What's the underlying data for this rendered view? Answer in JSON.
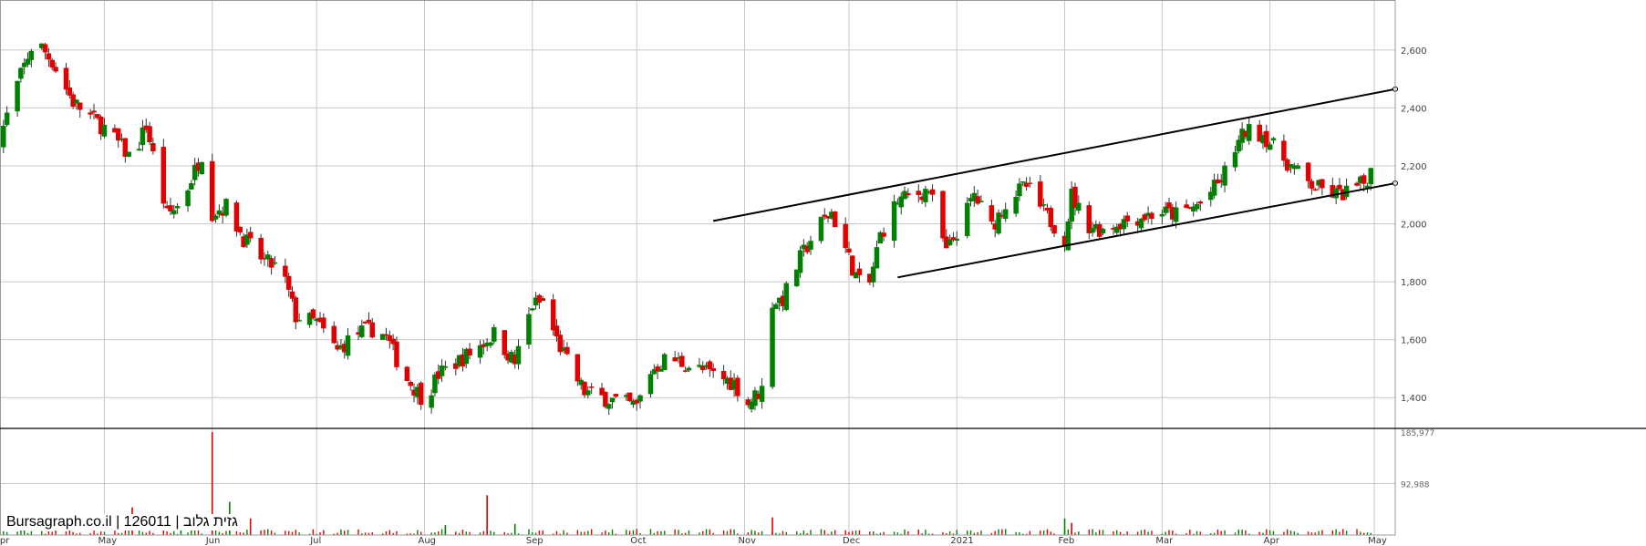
{
  "watermark": "Bursagraph.co.il | 126011 | גזית גלוב",
  "chart_data": {
    "type": "candlestick",
    "x_tick_labels": [
      "Apr",
      "May",
      "Jun",
      "Jul",
      "Aug",
      "Sep",
      "Oct",
      "Nov",
      "Dec",
      "2021",
      "Feb",
      "Mar",
      "Apr",
      "May"
    ],
    "x_tick_dates": [
      "2020-04-01",
      "2020-05-01",
      "2020-06-01",
      "2020-07-01",
      "2020-08-01",
      "2020-09-01",
      "2020-10-01",
      "2020-11-01",
      "2020-12-01",
      "2021-01-01",
      "2021-02-01",
      "2021-03-01",
      "2021-04-01",
      "2021-05-01"
    ],
    "x_range": [
      "2020-04-01",
      "2021-05-07"
    ],
    "price_axis": {
      "ticks": [
        1400,
        1600,
        1800,
        2000,
        2200,
        2400,
        2600
      ],
      "tick_labels": [
        "1,400",
        "1,600",
        "1,800",
        "2,000",
        "2,200",
        "2,400",
        "2,600"
      ],
      "range": [
        1300,
        2760
      ],
      "position": "right"
    },
    "volume_axis": {
      "tick_labels": [
        "185,977",
        "92,988"
      ],
      "ticks": [
        185977,
        92988
      ],
      "range": [
        0,
        185977
      ],
      "position": "right"
    },
    "grid": true,
    "colors": {
      "up": "#008000",
      "down": "#e00000",
      "grid": "#c8c8c8",
      "trendline": "#000000"
    },
    "close_waypoints": [
      [
        "2020-04-01",
        2300
      ],
      [
        "2020-04-06",
        2480
      ],
      [
        "2020-04-11",
        2640
      ],
      [
        "2020-04-16",
        2560
      ],
      [
        "2020-04-22",
        2420
      ],
      [
        "2020-05-01",
        2330
      ],
      [
        "2020-05-05",
        2280
      ],
      [
        "2020-05-09",
        2220
      ],
      [
        "2020-05-13",
        2340
      ],
      [
        "2020-05-19",
        2030
      ],
      [
        "2020-05-23",
        2070
      ],
      [
        "2020-05-29",
        2240
      ],
      [
        "2020-06-01",
        2040
      ],
      [
        "2020-06-05",
        2060
      ],
      [
        "2020-06-10",
        1950
      ],
      [
        "2020-06-16",
        1870
      ],
      [
        "2020-06-21",
        1840
      ],
      [
        "2020-06-25",
        1680
      ],
      [
        "2020-07-01",
        1660
      ],
      [
        "2020-07-07",
        1560
      ],
      [
        "2020-07-12",
        1620
      ],
      [
        "2020-07-18",
        1640
      ],
      [
        "2020-07-21",
        1610
      ],
      [
        "2020-07-26",
        1480
      ],
      [
        "2020-08-01",
        1390
      ],
      [
        "2020-08-05",
        1480
      ],
      [
        "2020-08-10",
        1520
      ],
      [
        "2020-08-16",
        1570
      ],
      [
        "2020-08-21",
        1620
      ],
      [
        "2020-08-27",
        1520
      ],
      [
        "2020-09-01",
        1720
      ],
      [
        "2020-09-04",
        1730
      ],
      [
        "2020-09-08",
        1600
      ],
      [
        "2020-09-12",
        1500
      ],
      [
        "2020-09-16",
        1420
      ],
      [
        "2020-09-21",
        1400
      ],
      [
        "2020-10-01",
        1370
      ],
      [
        "2020-10-05",
        1490
      ],
      [
        "2020-10-10",
        1540
      ],
      [
        "2020-10-16",
        1510
      ],
      [
        "2020-10-23",
        1480
      ],
      [
        "2020-10-29",
        1450
      ],
      [
        "2020-11-02",
        1380
      ],
      [
        "2020-11-06",
        1430
      ],
      [
        "2020-11-09",
        1730
      ],
      [
        "2020-11-12",
        1740
      ],
      [
        "2020-11-17",
        1880
      ],
      [
        "2020-11-22",
        1990
      ],
      [
        "2020-11-26",
        2040
      ],
      [
        "2020-12-02",
        1850
      ],
      [
        "2020-12-06",
        1740
      ],
      [
        "2020-12-10",
        1960
      ],
      [
        "2020-12-15",
        2080
      ],
      [
        "2020-12-20",
        2100
      ],
      [
        "2020-12-24",
        2120
      ],
      [
        "2020-12-29",
        1900
      ],
      [
        "2021-01-03",
        2020
      ],
      [
        "2021-01-06",
        2100
      ],
      [
        "2021-01-11",
        1990
      ],
      [
        "2021-01-16",
        2090
      ],
      [
        "2021-01-21",
        2130
      ],
      [
        "2021-01-26",
        2040
      ],
      [
        "2021-02-01",
        1950
      ],
      [
        "2021-02-03",
        2100
      ],
      [
        "2021-02-07",
        2000
      ],
      [
        "2021-02-12",
        1980
      ],
      [
        "2021-02-18",
        2010
      ],
      [
        "2021-02-25",
        2030
      ],
      [
        "2021-03-01",
        2040
      ],
      [
        "2021-03-06",
        2030
      ],
      [
        "2021-03-12",
        2070
      ],
      [
        "2021-03-18",
        2150
      ],
      [
        "2021-03-22",
        2260
      ],
      [
        "2021-03-25",
        2320
      ],
      [
        "2021-03-30",
        2310
      ],
      [
        "2021-04-03",
        2250
      ],
      [
        "2021-04-07",
        2200
      ],
      [
        "2021-04-12",
        2140
      ],
      [
        "2021-04-17",
        2110
      ],
      [
        "2021-04-21",
        2100
      ],
      [
        "2021-04-25",
        2120
      ],
      [
        "2021-04-28",
        2140
      ],
      [
        "2021-05-01",
        2200
      ]
    ],
    "volume_spikes": [
      {
        "date": "2020-05-09",
        "value": 50000
      },
      {
        "date": "2020-05-23",
        "value": 30000
      },
      {
        "date": "2020-06-01",
        "value": 185977
      },
      {
        "date": "2020-06-06",
        "value": 60000
      },
      {
        "date": "2020-06-12",
        "value": 30000
      },
      {
        "date": "2020-08-07",
        "value": 18000
      },
      {
        "date": "2020-08-19",
        "value": 72000
      },
      {
        "date": "2020-08-27",
        "value": 20000
      },
      {
        "date": "2020-11-09",
        "value": 32000
      },
      {
        "date": "2021-02-01",
        "value": 30000
      },
      {
        "date": "2021-02-03",
        "value": 22000
      }
    ],
    "trendlines": [
      {
        "from": [
          "2020-10-23",
          2010
        ],
        "to": [
          "2021-05-07",
          2465
        ]
      },
      {
        "from": [
          "2020-12-15",
          1815
        ],
        "to": [
          "2021-05-07",
          2140
        ]
      }
    ]
  }
}
